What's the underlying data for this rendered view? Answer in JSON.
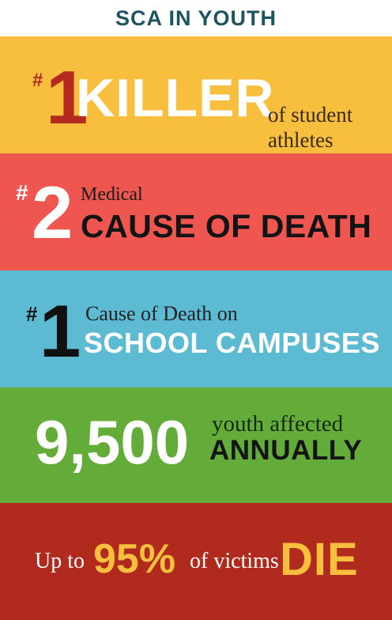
{
  "header": {
    "title": "SCA IN YOUTH"
  },
  "stats": [
    {
      "hash": "#",
      "number": "1",
      "headline": "KILLER",
      "sub_line1": "of student",
      "sub_line2": "athletes",
      "color": "#f8bf3e"
    },
    {
      "hash": "#",
      "number": "2",
      "prefix": "Medical",
      "headline": "CAUSE OF DEATH",
      "color": "#ef5650"
    },
    {
      "hash": "#",
      "number": "1",
      "prefix": "Cause of Death on",
      "headline": "SCHOOL CAMPUSES",
      "color": "#5cbbd3"
    },
    {
      "number": "9,500",
      "prefix": "youth affected",
      "headline": "ANNUALLY",
      "color": "#63ac3a"
    },
    {
      "pre": "Up to",
      "number": "95%",
      "mid": "of victims",
      "headline": "DIE",
      "color": "#b02a1e"
    }
  ]
}
